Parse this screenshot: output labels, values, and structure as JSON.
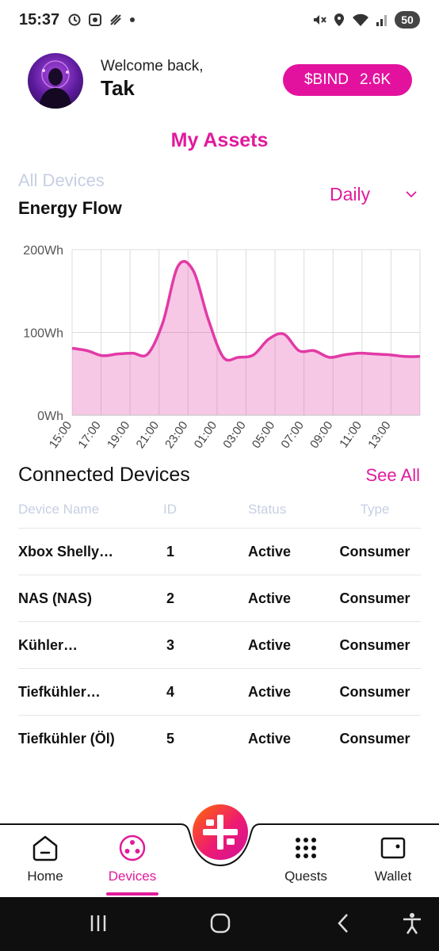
{
  "status_bar": {
    "time": "15:37",
    "battery": "50"
  },
  "header": {
    "welcome": "Welcome back,",
    "username": "Tak",
    "token_label": "$BIND",
    "token_value": "2.6K"
  },
  "page_title": "My Assets",
  "filter": {
    "scope": "All Devices",
    "chart_title": "Energy Flow",
    "period": "Daily"
  },
  "chart_data": {
    "type": "area",
    "title": "Energy Flow",
    "x_ticks": [
      "15:00",
      "17:00",
      "19:00",
      "21:00",
      "23:00",
      "01:00",
      "03:00",
      "05:00",
      "07:00",
      "09:00",
      "11:00",
      "13:00"
    ],
    "y_ticks": [
      "0Wh",
      "100Wh",
      "200Wh"
    ],
    "ylim": [
      0,
      200
    ],
    "y_unit": "Wh",
    "series": [
      {
        "color": "#e23aa6",
        "x": [
          "15:00",
          "16:00",
          "17:00",
          "18:00",
          "19:00",
          "20:00",
          "21:00",
          "22:00",
          "23:00",
          "00:00",
          "01:00",
          "02:00",
          "03:00",
          "04:00",
          "05:00",
          "06:00",
          "07:00",
          "08:00",
          "09:00",
          "10:00",
          "11:00",
          "12:00",
          "13:00",
          "14:00"
        ],
        "values": [
          81,
          78,
          72,
          74,
          75,
          74,
          112,
          180,
          175,
          116,
          70,
          70,
          73,
          92,
          98,
          78,
          78,
          70,
          73,
          75,
          74,
          73,
          71,
          71
        ]
      }
    ],
    "grid": true
  },
  "devices": {
    "title": "Connected Devices",
    "see_all": "See All",
    "columns": [
      "Device Name",
      "ID",
      "Status",
      "Type"
    ],
    "rows": [
      {
        "name": "Xbox Shelly…",
        "id": "1",
        "status": "Active",
        "type": "Consumer"
      },
      {
        "name": "NAS (NAS)",
        "id": "2",
        "status": "Active",
        "type": "Consumer"
      },
      {
        "name": "Kühler…",
        "id": "3",
        "status": "Active",
        "type": "Consumer"
      },
      {
        "name": "Tiefkühler…",
        "id": "4",
        "status": "Active",
        "type": "Consumer"
      },
      {
        "name": "Tiefkühler (Öl)",
        "id": "5",
        "status": "Active",
        "type": "Consumer"
      }
    ]
  },
  "bottom_nav": {
    "home": "Home",
    "devices": "Devices",
    "quests": "Quests",
    "wallet": "Wallet",
    "active": "devices"
  },
  "colors": {
    "accent": "#e01b9b",
    "muted": "#c6cfe3"
  }
}
